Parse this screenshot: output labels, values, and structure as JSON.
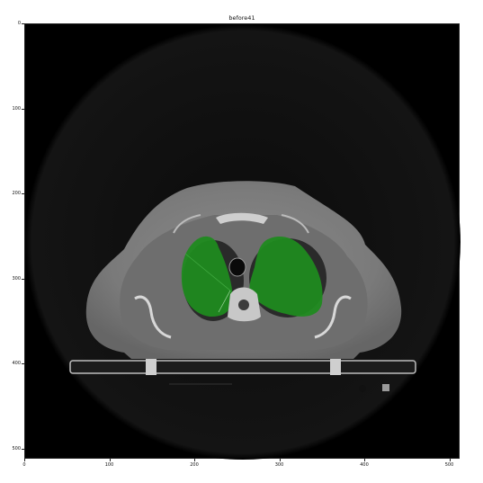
{
  "figure": {
    "title": "before41",
    "x_ticks": [
      "0",
      "100",
      "200",
      "300",
      "400",
      "500"
    ],
    "y_ticks": [
      "0",
      "100",
      "200",
      "300",
      "400",
      "500"
    ],
    "mask_color": "#1f8a1f",
    "scan_description_icon": "ct-scan-axial-chest-icon"
  }
}
